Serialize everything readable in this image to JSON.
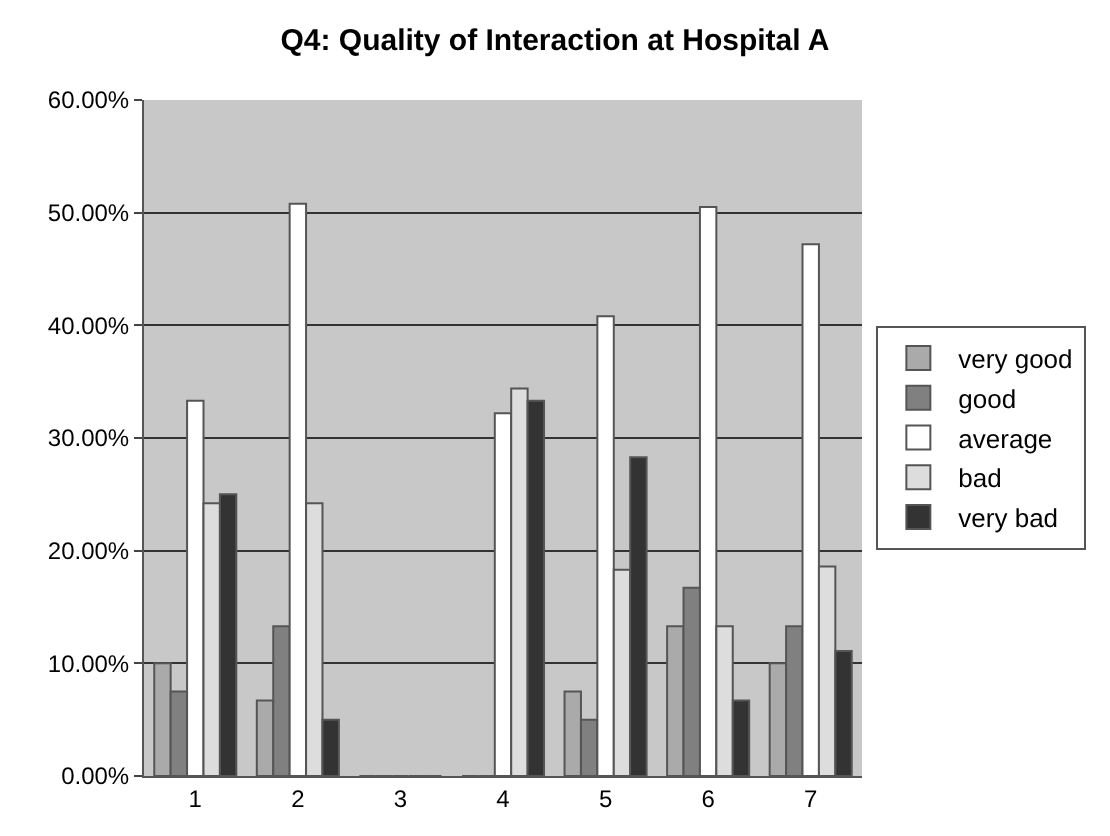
{
  "chart_data": {
    "type": "bar",
    "title": "Q4: Quality of Interaction at Hospital A",
    "categories": [
      "1",
      "2",
      "3",
      "4",
      "5",
      "6",
      "7"
    ],
    "series": [
      {
        "name": "very good",
        "color": "#aaaaaa",
        "values": [
          10.0,
          6.7,
          0,
          0,
          7.5,
          13.3,
          10.0
        ]
      },
      {
        "name": "good",
        "color": "#808080",
        "values": [
          7.5,
          13.3,
          0,
          0,
          5.0,
          16.7,
          13.3
        ]
      },
      {
        "name": "average",
        "color": "#ffffff",
        "values": [
          33.3,
          50.8,
          0,
          32.2,
          40.8,
          50.5,
          47.2
        ]
      },
      {
        "name": "bad",
        "color": "#dddddd",
        "values": [
          24.2,
          24.2,
          0,
          34.4,
          18.3,
          13.3,
          18.6
        ]
      },
      {
        "name": "very bad",
        "color": "#333333",
        "values": [
          25.0,
          5.0,
          0,
          33.3,
          28.3,
          6.7,
          11.1
        ]
      }
    ],
    "ylim": [
      0,
      60
    ],
    "yticks": [
      {
        "value": 0,
        "label": "0.00%"
      },
      {
        "value": 10,
        "label": "10.00%"
      },
      {
        "value": 20,
        "label": "20.00%"
      },
      {
        "value": 30,
        "label": "30.00%"
      },
      {
        "value": 40,
        "label": "40.00%"
      },
      {
        "value": 50,
        "label": "50.00%"
      },
      {
        "value": 60,
        "label": "60.00%"
      }
    ],
    "grid": "y",
    "legend": "right"
  }
}
